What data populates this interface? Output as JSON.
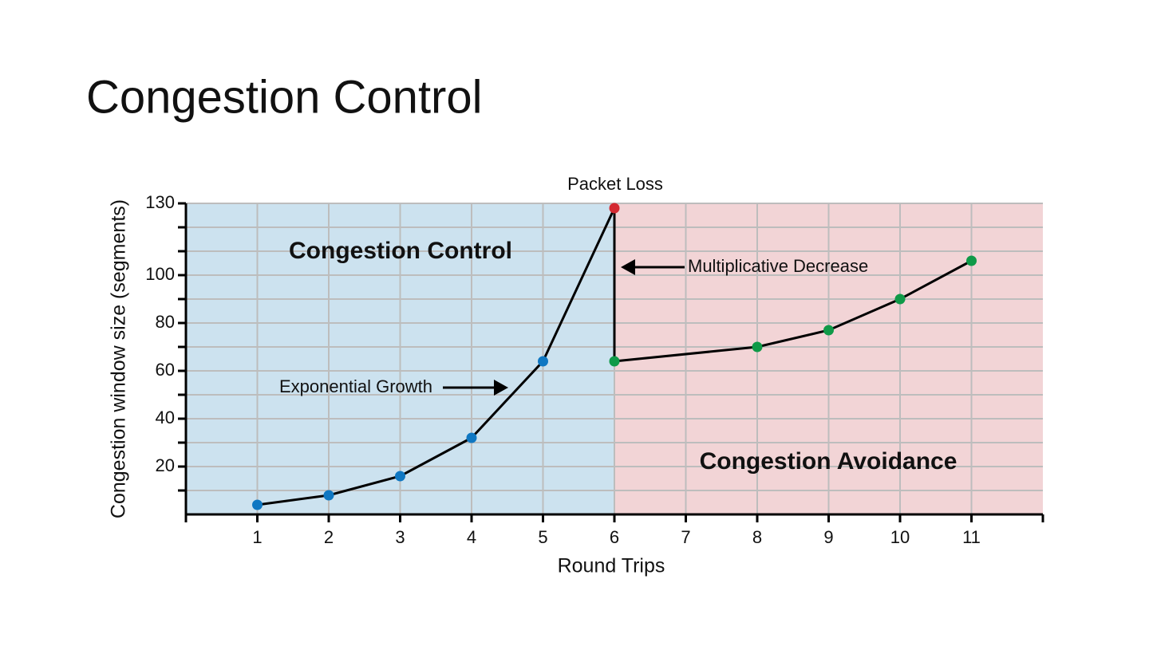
{
  "title": "Congestion Control",
  "chart_data": {
    "type": "line",
    "xlabel": "Round Trips",
    "ylabel": "Congestion window size (segments)",
    "xlim": [
      0,
      12
    ],
    "xticks": [
      1,
      2,
      3,
      4,
      5,
      6,
      7,
      8,
      9,
      10,
      11
    ],
    "ylim": [
      0,
      130
    ],
    "yticks": [
      20,
      40,
      60,
      80,
      100,
      130
    ],
    "yminor": [
      10,
      30,
      50,
      70,
      90,
      110,
      120
    ],
    "grid": true,
    "line_color": "#000000",
    "regions": [
      {
        "label": "Congestion Control",
        "xlim": [
          0,
          6
        ],
        "color": "#cce2ef"
      },
      {
        "label": "Congestion Avoidance",
        "xlim": [
          6,
          12
        ],
        "color": "#f2d4d6"
      }
    ],
    "series": [
      {
        "x": [
          1,
          2,
          3,
          4,
          5,
          6
        ],
        "values": [
          4,
          8,
          16,
          32,
          64,
          128
        ],
        "marker_colors": [
          "#0f77c2",
          "#0f77c2",
          "#0f77c2",
          "#0f77c2",
          "#0f77c2",
          "#d42a32"
        ]
      },
      {
        "x": [
          6,
          8,
          9,
          10,
          11
        ],
        "values": [
          64,
          70,
          77,
          90,
          106
        ],
        "marker_colors": [
          "#0f9a48",
          "#0f9a48",
          "#0f9a48",
          "#0f9a48",
          "#0f9a48"
        ]
      }
    ],
    "annotations": [
      "Packet Loss",
      "Multiplicative Decrease",
      "Exponential Growth"
    ]
  }
}
